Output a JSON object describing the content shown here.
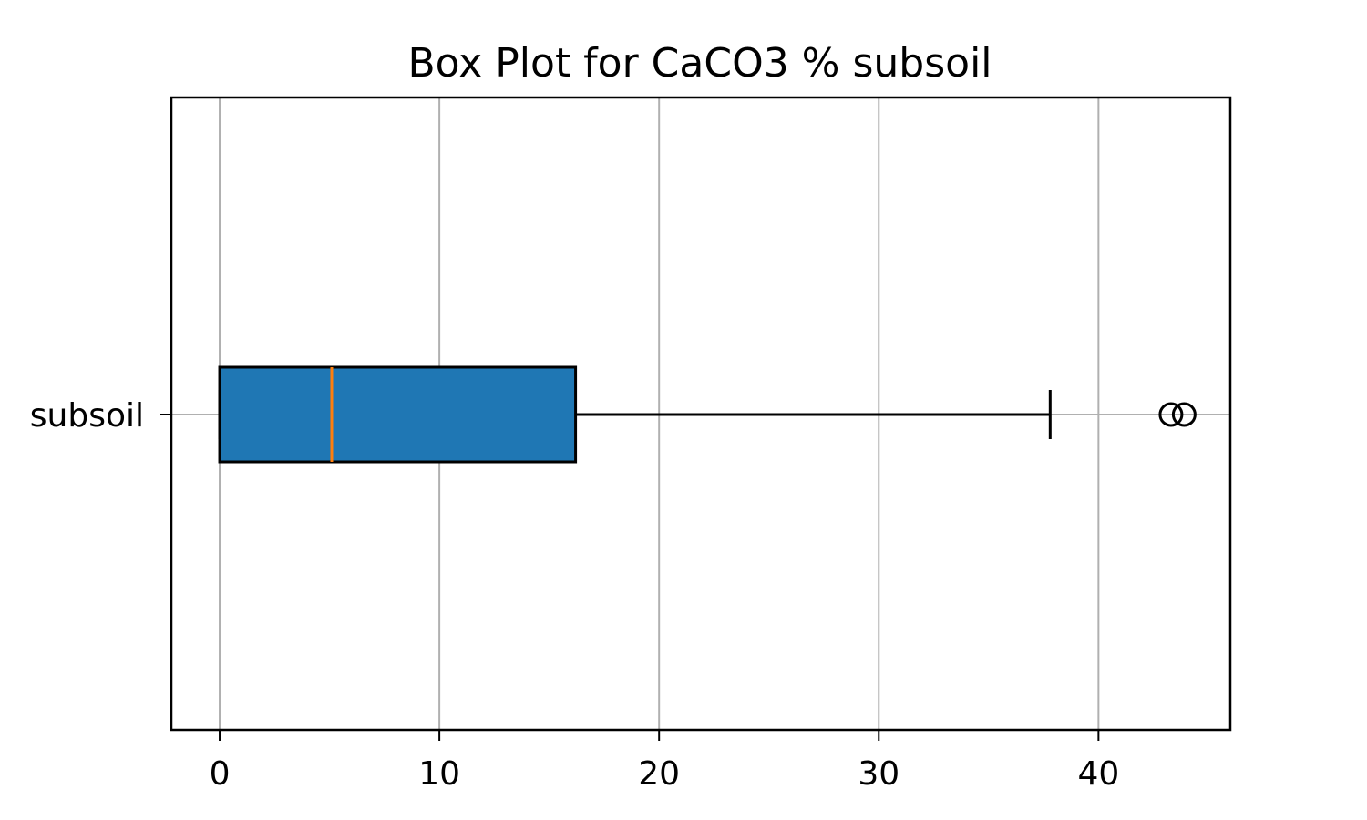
{
  "chart_data": {
    "type": "box",
    "orientation": "horizontal",
    "title": "Box Plot for CaCO3 % subsoil",
    "xlabel": "",
    "ylabel": "",
    "xlim": [
      -2.2,
      46.0
    ],
    "xticks": [
      0,
      10,
      20,
      30,
      40
    ],
    "xtick_labels": [
      "0",
      "10",
      "20",
      "30",
      "40"
    ],
    "grid": true,
    "series": [
      {
        "name": "subsoil",
        "whisker_low": 0.0,
        "q1": 0.0,
        "median": 5.1,
        "q3": 16.2,
        "whisker_high": 37.8,
        "outliers": [
          43.3,
          43.9
        ]
      }
    ],
    "colors": {
      "box_fill": "#1f77b4",
      "median": "#ff7f0e",
      "grid": "#b0b0b0",
      "edge": "#000000"
    }
  }
}
